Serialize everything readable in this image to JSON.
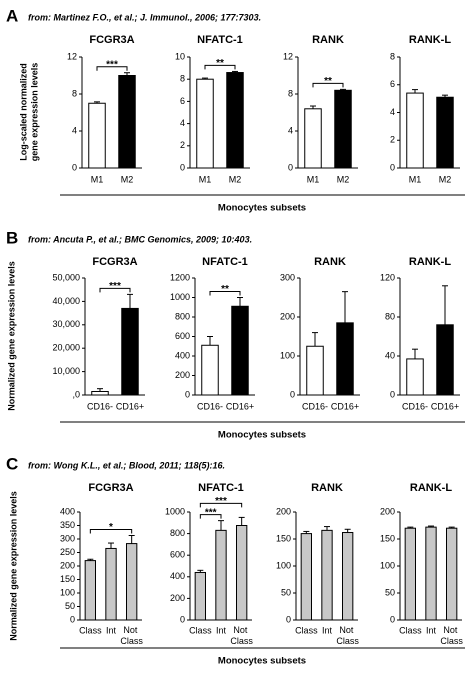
{
  "panels": [
    {
      "letter": "A",
      "source": "from: Martinez F.O., et al.; J. Immunol., 2006; 177:7303.",
      "y_label": [
        "Log-scaled normalized",
        "gene expression levels"
      ],
      "x_label": "Monocytes subsets"
    },
    {
      "letter": "B",
      "source": "from: Ancuta P., et al.; BMC Genomics, 2009; 10:403.",
      "y_label": [
        "Normalized gene expression levels"
      ],
      "x_label": "Monocytes subsets"
    },
    {
      "letter": "C",
      "source": "from: Wong K.L., et al.; Blood, 2011; 118(5):16.",
      "y_label": [
        "Normalized gene expression levels"
      ],
      "x_label": "Monocytes subsets"
    }
  ],
  "chart_data": [
    {
      "type": "bar",
      "title": "FCGR3A",
      "categories": [
        "M1",
        "M2"
      ],
      "values": [
        7.0,
        10.0
      ],
      "errors": [
        0.15,
        0.3
      ],
      "colors": [
        "#ffffff",
        "#000000"
      ],
      "ylim": [
        0,
        12
      ],
      "yticks": [
        0,
        4,
        8,
        12
      ],
      "significance": [
        {
          "from": 0,
          "to": 1,
          "label": "***"
        }
      ]
    },
    {
      "type": "bar",
      "title": "NFATC-1",
      "categories": [
        "M1",
        "M2"
      ],
      "values": [
        8.0,
        8.6
      ],
      "errors": [
        0.1,
        0.1
      ],
      "colors": [
        "#ffffff",
        "#000000"
      ],
      "ylim": [
        0,
        10
      ],
      "yticks": [
        0,
        2,
        4,
        6,
        8,
        10
      ],
      "significance": [
        {
          "from": 0,
          "to": 1,
          "label": "**"
        }
      ]
    },
    {
      "type": "bar",
      "title": "RANK",
      "categories": [
        "M1",
        "M2"
      ],
      "values": [
        6.4,
        8.4
      ],
      "errors": [
        0.3,
        0.1
      ],
      "colors": [
        "#ffffff",
        "#000000"
      ],
      "ylim": [
        0,
        12
      ],
      "yticks": [
        0,
        4,
        8,
        12
      ],
      "significance": [
        {
          "from": 0,
          "to": 1,
          "label": "**"
        }
      ]
    },
    {
      "type": "bar",
      "title": "RANK-L",
      "categories": [
        "M1",
        "M2"
      ],
      "values": [
        5.4,
        5.1
      ],
      "errors": [
        0.25,
        0.15
      ],
      "colors": [
        "#ffffff",
        "#000000"
      ],
      "ylim": [
        0,
        8
      ],
      "yticks": [
        0,
        2,
        4,
        6,
        8
      ]
    },
    {
      "type": "bar",
      "title": "FCGR3A",
      "categories": [
        "CD16-",
        "CD16+"
      ],
      "values": [
        1500,
        37000
      ],
      "errors": [
        1200,
        6000
      ],
      "colors": [
        "#ffffff",
        "#000000"
      ],
      "ylim": [
        0,
        50000
      ],
      "yticks": [
        {
          "value": 0,
          "label": ",0"
        },
        {
          "value": 10000,
          "label": "10,000"
        },
        {
          "value": 20000,
          "label": "20,000"
        },
        {
          "value": 30000,
          "label": "30,000"
        },
        {
          "value": 40000,
          "label": "40,000"
        },
        {
          "value": 50000,
          "label": "50,000"
        }
      ],
      "significance": [
        {
          "from": 0,
          "to": 1,
          "label": "***"
        }
      ]
    },
    {
      "type": "bar",
      "title": "NFATC-1",
      "categories": [
        "CD16-",
        "CD16+"
      ],
      "values": [
        510,
        910
      ],
      "errors": [
        90,
        90
      ],
      "colors": [
        "#ffffff",
        "#000000"
      ],
      "ylim": [
        0,
        1200
      ],
      "yticks": [
        0,
        200,
        400,
        600,
        800,
        1000,
        1200
      ],
      "significance": [
        {
          "from": 0,
          "to": 1,
          "label": "**"
        }
      ]
    },
    {
      "type": "bar",
      "title": "RANK",
      "categories": [
        "CD16-",
        "CD16+"
      ],
      "values": [
        125,
        185
      ],
      "errors": [
        35,
        80
      ],
      "colors": [
        "#ffffff",
        "#000000"
      ],
      "ylim": [
        0,
        300
      ],
      "yticks": [
        0,
        100,
        200,
        300
      ]
    },
    {
      "type": "bar",
      "title": "RANK-L",
      "categories": [
        "CD16-",
        "CD16+"
      ],
      "values": [
        37,
        72
      ],
      "errors": [
        10,
        40
      ],
      "colors": [
        "#ffffff",
        "#000000"
      ],
      "ylim": [
        0,
        120
      ],
      "yticks": [
        0,
        40,
        80,
        120
      ]
    },
    {
      "type": "bar",
      "title": "FCGR3A",
      "categories": [
        "Class",
        "Int",
        "Not Class"
      ],
      "values": [
        220,
        265,
        283
      ],
      "errors": [
        5,
        20,
        30
      ],
      "colors": [
        "#c8c8c8",
        "#c8c8c8",
        "#c8c8c8"
      ],
      "ylim": [
        0,
        400
      ],
      "yticks": [
        0,
        50,
        100,
        150,
        200,
        250,
        300,
        350,
        400
      ],
      "significance": [
        {
          "from": 0,
          "to": 2,
          "label": "*"
        }
      ]
    },
    {
      "type": "bar",
      "title": "NFATC-1",
      "categories": [
        "Class",
        "Int",
        "Not Class"
      ],
      "values": [
        440,
        830,
        875
      ],
      "errors": [
        20,
        90,
        75
      ],
      "colors": [
        "#c8c8c8",
        "#c8c8c8",
        "#c8c8c8"
      ],
      "ylim": [
        0,
        1000
      ],
      "yticks": [
        0,
        200,
        400,
        600,
        800,
        1000
      ],
      "significance": [
        {
          "from": 0,
          "to": 1,
          "label": "***"
        },
        {
          "from": 0,
          "to": 2,
          "label": "***"
        }
      ]
    },
    {
      "type": "bar",
      "title": "RANK",
      "categories": [
        "Class",
        "Int",
        "Not Class"
      ],
      "values": [
        160,
        166,
        162
      ],
      "errors": [
        4,
        7,
        6
      ],
      "colors": [
        "#c8c8c8",
        "#c8c8c8",
        "#c8c8c8"
      ],
      "ylim": [
        0,
        200
      ],
      "yticks": [
        0,
        50,
        100,
        150,
        200
      ]
    },
    {
      "type": "bar",
      "title": "RANK-L",
      "categories": [
        "Class",
        "Int",
        "Not Class"
      ],
      "values": [
        170,
        172,
        170
      ],
      "errors": [
        2,
        2,
        2
      ],
      "colors": [
        "#c8c8c8",
        "#c8c8c8",
        "#c8c8c8"
      ],
      "ylim": [
        0,
        200
      ],
      "yticks": [
        0,
        50,
        100,
        150,
        200
      ]
    }
  ]
}
